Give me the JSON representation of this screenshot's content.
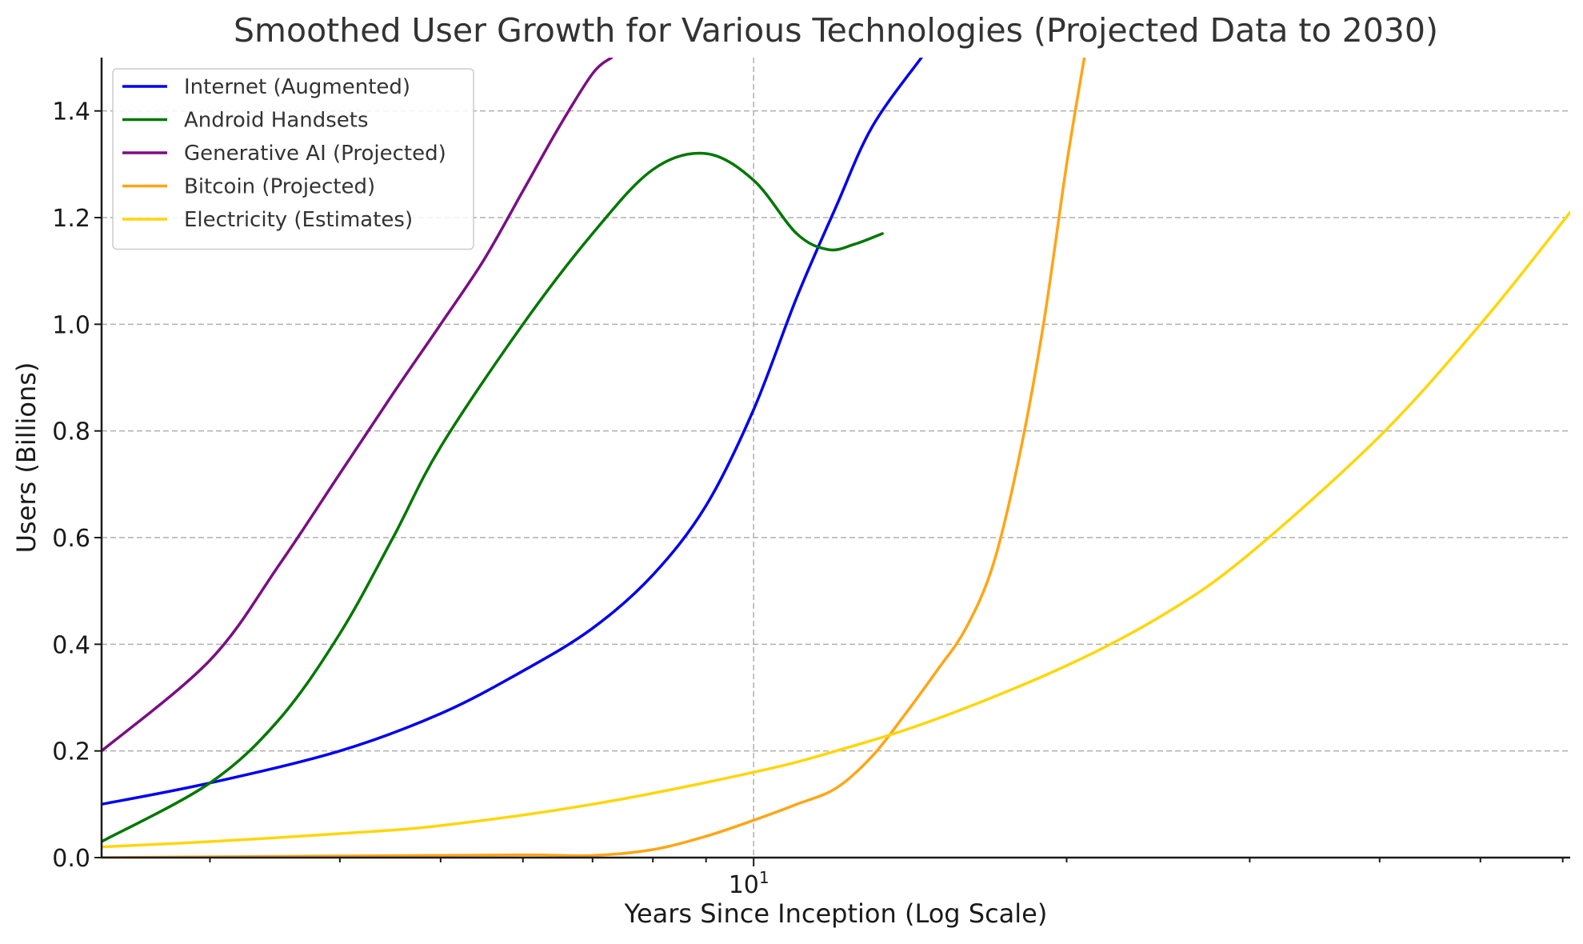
{
  "chart_data": {
    "type": "line",
    "title": "Smoothed User Growth for Various Technologies (Projected Data to 2030)",
    "xlabel": "Years Since Inception (Log Scale)",
    "ylabel": "Users (Billions)",
    "x_scale": "log",
    "xlim": [
      2.36,
      61
    ],
    "ylim": [
      0,
      1.5
    ],
    "grid": true,
    "legend_position": "top-left",
    "x_tick_labels": [
      {
        "value": 10,
        "base": "10",
        "exp": "1"
      }
    ],
    "y_ticks": [
      0,
      0.2,
      0.4,
      0.6,
      0.8,
      1.0,
      1.2,
      1.4
    ],
    "y_tick_labels": [
      "0.0",
      "0.2",
      "0.4",
      "0.6",
      "0.8",
      "1.0",
      "1.2",
      "1.4"
    ],
    "series": [
      {
        "name": "Internet (Augmented)",
        "color": "#0000ee",
        "x": [
          2.36,
          3.0,
          4.0,
          5.0,
          6.0,
          7.0,
          8.0,
          9.0,
          10.0,
          11.0,
          12.0,
          13.0,
          14.5
        ],
        "y": [
          0.1,
          0.14,
          0.2,
          0.27,
          0.35,
          0.43,
          0.53,
          0.66,
          0.84,
          1.05,
          1.22,
          1.37,
          1.5
        ]
      },
      {
        "name": "Android Handsets",
        "color": "#007700",
        "x": [
          2.36,
          3.0,
          3.5,
          4.0,
          4.5,
          5.0,
          6.0,
          7.0,
          8.0,
          9.0,
          10.0,
          11.0,
          11.8,
          12.5,
          13.3
        ],
        "y": [
          0.03,
          0.14,
          0.26,
          0.42,
          0.6,
          0.77,
          1.0,
          1.17,
          1.29,
          1.32,
          1.27,
          1.17,
          1.14,
          1.15,
          1.17
        ]
      },
      {
        "name": "Generative AI (Projected)",
        "color": "#7b0f82",
        "x": [
          2.36,
          3.0,
          3.5,
          4.0,
          4.5,
          5.0,
          5.5,
          6.0,
          6.5,
          7.0,
          7.3
        ],
        "y": [
          0.2,
          0.37,
          0.55,
          0.72,
          0.87,
          1.0,
          1.12,
          1.25,
          1.37,
          1.47,
          1.5
        ]
      },
      {
        "name": "Bitcoin (Projected)",
        "color": "#ffa516",
        "x": [
          2.36,
          4.0,
          6.0,
          7.0,
          8.0,
          9.0,
          10.0,
          11.0,
          12.0,
          13.0,
          14.0,
          15.0,
          16.0,
          17.0,
          18.0,
          19.0,
          20.0,
          20.8
        ],
        "y": [
          0.0,
          0.003,
          0.005,
          0.004,
          0.015,
          0.04,
          0.07,
          0.1,
          0.13,
          0.19,
          0.27,
          0.35,
          0.43,
          0.55,
          0.75,
          1.0,
          1.3,
          1.5
        ]
      },
      {
        "name": "Electricity (Estimates)",
        "color": "#ffd60a",
        "x": [
          2.36,
          3.0,
          4.0,
          5.0,
          7.0,
          10.0,
          12.0,
          15.0,
          20.0,
          25.0,
          30.0,
          40.0,
          50.0,
          61.0
        ],
        "y": [
          0.02,
          0.03,
          0.045,
          0.06,
          0.1,
          0.16,
          0.2,
          0.26,
          0.36,
          0.46,
          0.57,
          0.79,
          1.0,
          1.21
        ]
      }
    ]
  }
}
